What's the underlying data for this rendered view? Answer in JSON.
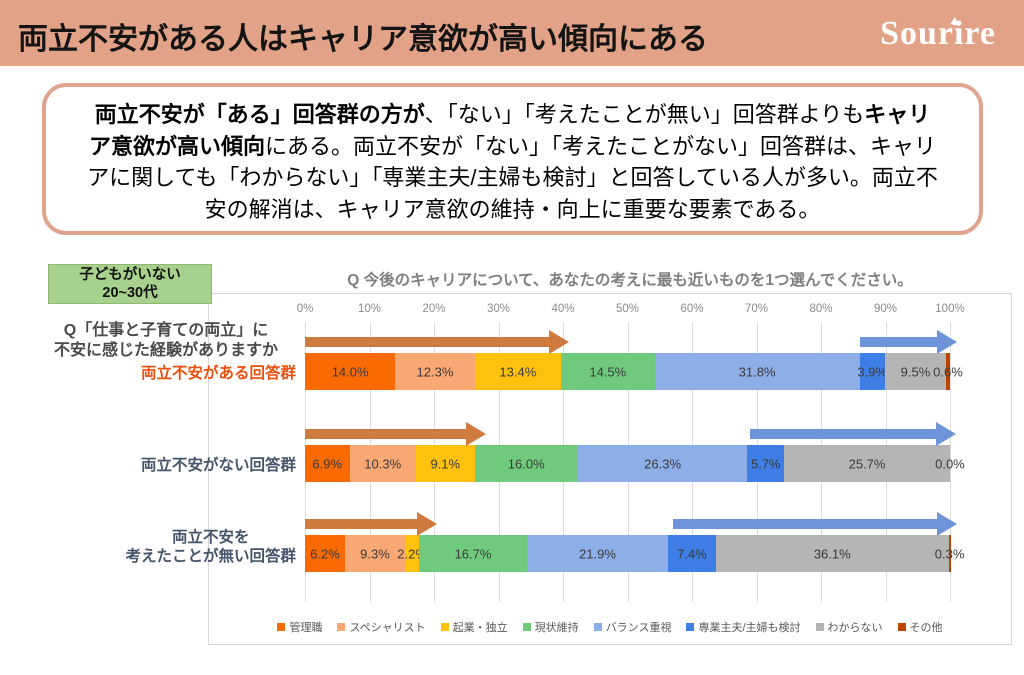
{
  "header": {
    "title": "両立不安がある人はキャリア意欲が高い傾向にある",
    "brand": "Sourire"
  },
  "callout": {
    "lines": [
      [
        {
          "t": "両立不安が「ある」回答群の方が",
          "b": true
        },
        {
          "t": "、「ない」「考えたことが無い」回答群よりも",
          "b": false
        },
        {
          "t": "キャリ",
          "b": true
        }
      ],
      [
        {
          "t": "ア意欲が高い傾向",
          "b": true
        },
        {
          "t": "にある。両立不安が「ない」「考えたことがない」回答群は、キャリ",
          "b": false
        }
      ],
      [
        {
          "t": "アに関しても「わからない」「専業主夫/主婦も検討」と回答している人が多い。両立不",
          "b": false
        }
      ],
      [
        {
          "t": "安の解消は、キャリア意欲の維持・向上に重要な要素である。",
          "b": false
        }
      ]
    ]
  },
  "filter_badge": {
    "line1": "子どもがいない",
    "line2": "20~30代"
  },
  "chart_data": {
    "type": "bar",
    "stacked": true,
    "orientation": "horizontal",
    "title": "Q 今後のキャリアについて、あなたの考えに最も近いものを1つ選んでください。",
    "axis_question": [
      "Q「仕事と子育ての両立」に",
      "不安に感じた経験がありますか"
    ],
    "x_ticks": [
      "0%",
      "10%",
      "20%",
      "30%",
      "40%",
      "50%",
      "60%",
      "70%",
      "80%",
      "90%",
      "100%"
    ],
    "xlim": [
      0,
      100
    ],
    "grid": true,
    "legend_position": "bottom",
    "categories": [
      {
        "lines": [
          "両立不安がある回答群"
        ],
        "color": "#EC4E0D"
      },
      {
        "lines": [
          "両立不安がない回答群"
        ],
        "color": "#44546A"
      },
      {
        "lines": [
          "両立不安を",
          "考えたことが無い回答群"
        ],
        "color": "#44546A"
      }
    ],
    "series": [
      {
        "name": "管理職",
        "color": "#F96A02",
        "values": [
          14.0,
          6.9,
          6.2
        ]
      },
      {
        "name": "スペシャリスト",
        "color": "#F9A873",
        "values": [
          12.3,
          10.3,
          9.3
        ]
      },
      {
        "name": "起業・独立",
        "color": "#FEC10D",
        "values": [
          13.4,
          9.1,
          2.2
        ]
      },
      {
        "name": "現状維持",
        "color": "#70CA7E",
        "values": [
          14.5,
          16.0,
          16.7
        ]
      },
      {
        "name": "バランス重視",
        "color": "#8EAEE7",
        "values": [
          31.8,
          26.3,
          21.9
        ]
      },
      {
        "name": "専業主夫/主婦も検討",
        "color": "#3E7EE6",
        "values": [
          3.9,
          5.7,
          7.4
        ]
      },
      {
        "name": "わからない",
        "color": "#B5B5B5",
        "values": [
          9.5,
          25.7,
          36.1
        ]
      },
      {
        "name": "その他",
        "color": "#BC4500",
        "values": [
          0.6,
          0.0,
          0.3
        ]
      }
    ],
    "arrows": [
      {
        "row": 0,
        "from": 0,
        "to": 41,
        "color": "#CF7B3F"
      },
      {
        "row": 0,
        "from": 86,
        "to": 101,
        "color": "#6D94D9"
      },
      {
        "row": 1,
        "from": 0,
        "to": 28,
        "color": "#CF7B3F"
      },
      {
        "row": 1,
        "from": 69,
        "to": 101,
        "color": "#6D94D9"
      },
      {
        "row": 2,
        "from": 0,
        "to": 20.5,
        "color": "#CF7B3F"
      },
      {
        "row": 2,
        "from": 57,
        "to": 101,
        "color": "#6D94D9"
      }
    ]
  },
  "colors": {
    "salmon_band": "#E2A287",
    "callout_border": "#E0A48E",
    "badge_green": "#A9D18E",
    "chart_title_gray": "#7F7F7F",
    "tick_gray": "#8C8C8C",
    "gridline": "#DCDCDC",
    "frame_border": "#D8D8D8",
    "question_label": "#4A4A4A",
    "value_label": "#3A3A3A",
    "legend_text": "#595959"
  }
}
